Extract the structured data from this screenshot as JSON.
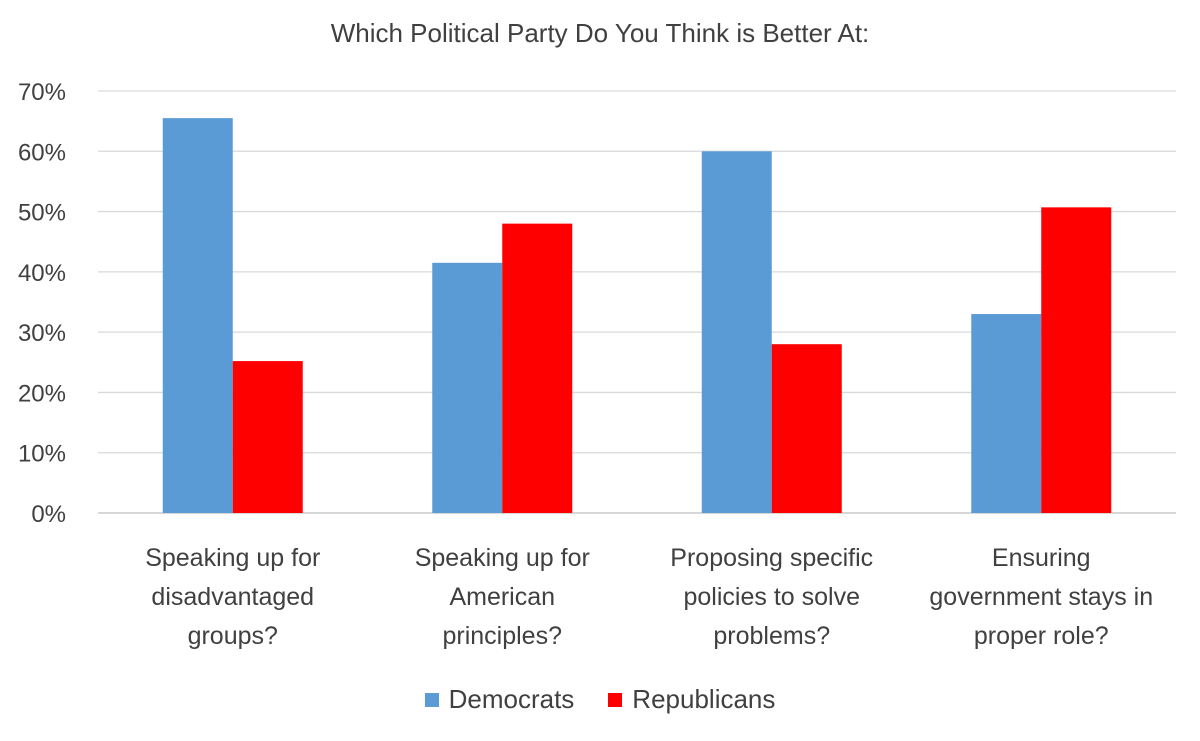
{
  "chart_data": {
    "type": "bar",
    "title": "Which Political Party Do You Think is Better At:",
    "categories": [
      [
        "Speaking up for",
        "disadvantaged",
        "groups?"
      ],
      [
        "Speaking up for",
        "American",
        "principles?"
      ],
      [
        "Proposing specific",
        "policies to solve",
        "problems?"
      ],
      [
        "Ensuring",
        "government stays in",
        "proper role?"
      ]
    ],
    "series": [
      {
        "name": "Democrats",
        "color": "#5B9BD5",
        "values": [
          65.5,
          41.5,
          60,
          33
        ]
      },
      {
        "name": "Republicans",
        "color": "#FF0000",
        "values": [
          25.2,
          48,
          28,
          50.7
        ]
      }
    ],
    "ylim": [
      0,
      70
    ],
    "yticks": [
      "0%",
      "10%",
      "20%",
      "30%",
      "40%",
      "50%",
      "60%",
      "70%"
    ],
    "grid": true,
    "legend_position": "bottom"
  }
}
